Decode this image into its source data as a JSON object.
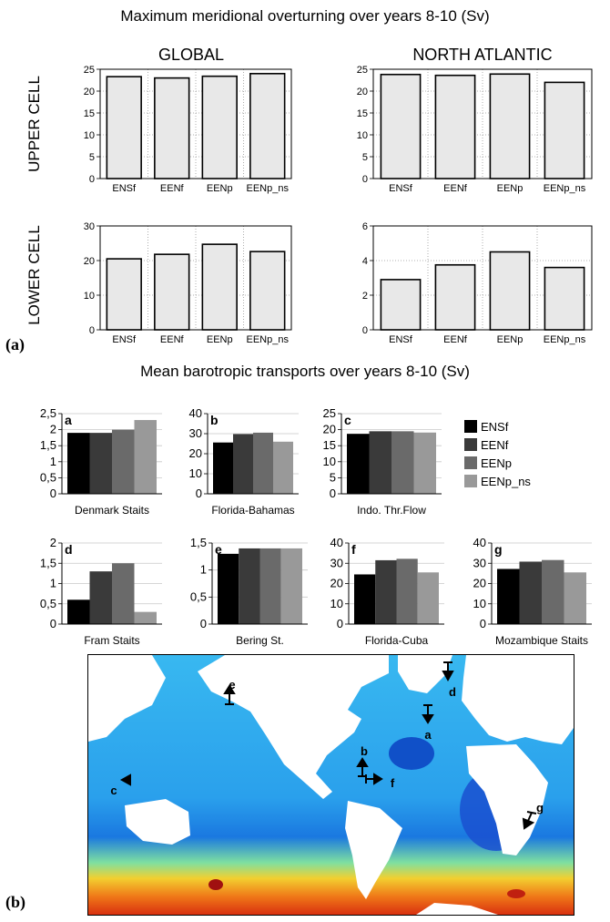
{
  "section_a": {
    "title": "Maximum meridional overturning over years 8-10 (Sv)",
    "col_global": "GLOBAL",
    "col_north_atlantic": "NORTH ATLANTIC",
    "row_upper": "UPPER CELL",
    "row_lower": "LOWER CELL",
    "panel_label": "(a)"
  },
  "section_b": {
    "title": "Mean barotropic transports over years 8-10 (Sv)",
    "panel_label": "(b)",
    "legend": [
      "ENSf",
      "EENf",
      "EENp",
      "EENp_ns"
    ],
    "legend_colors": [
      "#000000",
      "#3a3a3a",
      "#6a6a6a",
      "#999999"
    ]
  },
  "chart_data": [
    {
      "id": "global-upper",
      "type": "bar",
      "categories": [
        "ENSf",
        "EENf",
        "EENp",
        "EENp_ns"
      ],
      "values": [
        23.3,
        23.0,
        23.4,
        24.0
      ],
      "ylim": [
        0,
        25
      ],
      "yticks": [
        0,
        5,
        10,
        15,
        20,
        25
      ],
      "ytick_labels": [
        "0",
        "5",
        "10",
        "15",
        "20",
        "25"
      ],
      "grid": true
    },
    {
      "id": "na-upper",
      "type": "bar",
      "categories": [
        "ENSf",
        "EENf",
        "EENp",
        "EENp_ns"
      ],
      "values": [
        23.8,
        23.6,
        23.9,
        22.0
      ],
      "ylim": [
        0,
        25
      ],
      "yticks": [
        0,
        5,
        10,
        15,
        20,
        25
      ],
      "ytick_labels": [
        "0",
        "5",
        "10",
        "15",
        "20",
        "25"
      ],
      "grid": true
    },
    {
      "id": "global-lower",
      "type": "bar",
      "categories": [
        "ENSf",
        "EENf",
        "EENp",
        "EENp_ns"
      ],
      "values": [
        20.5,
        21.8,
        24.7,
        22.6
      ],
      "ylim": [
        0,
        30
      ],
      "yticks": [
        0,
        10,
        20,
        30
      ],
      "ytick_labels": [
        "0",
        "10",
        "20",
        "30"
      ],
      "grid": true
    },
    {
      "id": "na-lower",
      "type": "bar",
      "categories": [
        "ENSf",
        "EENf",
        "EENp",
        "EENp_ns"
      ],
      "values": [
        2.9,
        3.75,
        4.5,
        3.6
      ],
      "ylim": [
        0,
        6
      ],
      "yticks": [
        0,
        2,
        4,
        6
      ],
      "ytick_labels": [
        "0",
        "2",
        "4",
        "6"
      ],
      "grid": true
    },
    {
      "id": "a",
      "type": "bar",
      "letter": "a",
      "xlabel": "Denmark Staits",
      "series_values": [
        1.9,
        1.9,
        2.0,
        2.3
      ],
      "ylim": [
        0,
        2.5
      ],
      "yticks": [
        0,
        0.5,
        1,
        1.5,
        2,
        2.5
      ],
      "ytick_labels": [
        "0",
        "0,5",
        "1",
        "1,5",
        "2",
        "2,5"
      ]
    },
    {
      "id": "b",
      "type": "bar",
      "letter": "b",
      "xlabel": "Florida-Bahamas",
      "series_values": [
        25.6,
        29.8,
        30.5,
        26.0
      ],
      "ylim": [
        0,
        40
      ],
      "yticks": [
        0,
        10,
        20,
        30,
        40
      ],
      "ytick_labels": [
        "0",
        "10",
        "20",
        "30",
        "40"
      ]
    },
    {
      "id": "c",
      "type": "bar",
      "letter": "c",
      "xlabel": "Indo. Thr.Flow",
      "series_values": [
        18.7,
        19.5,
        19.5,
        19.1
      ],
      "ylim": [
        0,
        25
      ],
      "yticks": [
        0,
        5,
        10,
        15,
        20,
        25
      ],
      "ytick_labels": [
        "0",
        "5",
        "10",
        "15",
        "20",
        "25"
      ]
    },
    {
      "id": "d",
      "type": "bar",
      "letter": "d",
      "xlabel": "Fram Staits",
      "series_values": [
        0.6,
        1.3,
        1.5,
        0.3
      ],
      "ylim": [
        0,
        2
      ],
      "yticks": [
        0,
        0.5,
        1,
        1.5,
        2
      ],
      "ytick_labels": [
        "0",
        "0,5",
        "1",
        "1,5",
        "2"
      ]
    },
    {
      "id": "e",
      "type": "bar",
      "letter": "e",
      "xlabel": "Bering St.",
      "series_values": [
        1.3,
        1.4,
        1.4,
        1.4
      ],
      "ylim": [
        0,
        1.5
      ],
      "yticks": [
        0,
        0.5,
        1,
        1.5
      ],
      "ytick_labels": [
        "0",
        "0,5",
        "1",
        "1,5"
      ]
    },
    {
      "id": "f",
      "type": "bar",
      "letter": "f",
      "xlabel": "Florida-Cuba",
      "series_values": [
        24.5,
        31.5,
        32.2,
        25.5
      ],
      "ylim": [
        0,
        40
      ],
      "yticks": [
        0,
        10,
        20,
        30,
        40
      ],
      "ytick_labels": [
        "0",
        "10",
        "20",
        "30",
        "40"
      ]
    },
    {
      "id": "g",
      "type": "bar",
      "letter": "g",
      "xlabel": "Mozambique Staits",
      "series_values": [
        27.2,
        30.8,
        31.6,
        25.5
      ],
      "ylim": [
        0,
        40
      ],
      "yticks": [
        0,
        10,
        20,
        30,
        40
      ],
      "ytick_labels": [
        "0",
        "10",
        "20",
        "30",
        "40"
      ]
    }
  ],
  "map": {
    "markers": [
      "a",
      "b",
      "c",
      "d",
      "e",
      "f",
      "g"
    ]
  }
}
